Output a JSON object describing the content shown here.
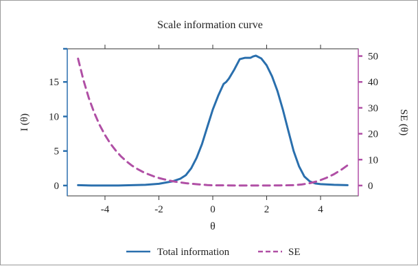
{
  "chart_data": {
    "type": "line",
    "title": "Scale information curve",
    "xlabel": "θ",
    "ylabel_left": "I (θ)",
    "ylabel_right": "SE (θ)",
    "xlim": [
      -5.4,
      5.4
    ],
    "ylim_left": [
      -1.5,
      19.8
    ],
    "ylim_right": [
      -4.0,
      52.8
    ],
    "x_ticks": [
      -4,
      -2,
      0,
      2,
      4
    ],
    "x_tick_labels": [
      "-4",
      "-2",
      "0",
      "2",
      "4"
    ],
    "y_left_ticks": [
      0,
      5,
      10,
      15
    ],
    "y_left_tick_labels": [
      "0",
      "5",
      "10",
      "15"
    ],
    "y_right_ticks": [
      0,
      10,
      20,
      30,
      40,
      50
    ],
    "y_right_tick_labels": [
      "0",
      "10",
      "20",
      "30",
      "40",
      "50"
    ],
    "grid": false,
    "legend_position": "bottom",
    "series": [
      {
        "name": "Total information",
        "axis": "left",
        "color": "#2a6fad",
        "style": "solid",
        "x": [
          -5,
          -4.5,
          -4,
          -3.5,
          -3,
          -2.5,
          -2,
          -1.5,
          -1.2,
          -1.0,
          -0.8,
          -0.6,
          -0.4,
          -0.2,
          0.0,
          0.2,
          0.4,
          0.5,
          0.6,
          0.8,
          1.0,
          1.2,
          1.4,
          1.5,
          1.6,
          1.8,
          2.0,
          2.2,
          2.4,
          2.6,
          2.8,
          3.0,
          3.2,
          3.4,
          3.6,
          3.8,
          4.0,
          4.5,
          5.0
        ],
        "y": [
          0.05,
          0.0,
          0.0,
          0.0,
          0.05,
          0.1,
          0.25,
          0.6,
          1.0,
          1.5,
          2.5,
          4.0,
          6.0,
          8.5,
          11.0,
          13.0,
          14.7,
          15.0,
          15.5,
          16.8,
          18.3,
          18.5,
          18.5,
          18.7,
          18.8,
          18.4,
          17.4,
          15.8,
          13.7,
          11.0,
          8.0,
          5.0,
          2.8,
          1.3,
          0.6,
          0.3,
          0.2,
          0.1,
          0.05
        ]
      },
      {
        "name": "SE",
        "axis": "right",
        "color": "#b04fa5",
        "style": "dashed",
        "x": [
          -5.0,
          -4.8,
          -4.6,
          -4.4,
          -4.2,
          -4.0,
          -3.8,
          -3.6,
          -3.4,
          -3.2,
          -3.0,
          -2.8,
          -2.6,
          -2.4,
          -2.2,
          -2.0,
          -1.8,
          -1.6,
          -1.4,
          -1.2,
          -1.0,
          -0.8,
          -0.6,
          -0.4,
          -0.2,
          0.0,
          0.5,
          1.0,
          1.5,
          2.0,
          2.5,
          3.0,
          3.3,
          3.6,
          3.9,
          4.2,
          4.5,
          4.8,
          5.0
        ],
        "y": [
          49,
          40.7,
          33.8,
          28.1,
          23.4,
          19.5,
          16.2,
          13.5,
          11.2,
          9.3,
          7.7,
          6.4,
          5.3,
          4.4,
          3.6,
          2.9,
          2.4,
          1.9,
          1.5,
          1.2,
          0.9,
          0.7,
          0.5,
          0.35,
          0.2,
          0.1,
          0.05,
          0.0,
          0.0,
          0.0,
          0.05,
          0.15,
          0.4,
          0.9,
          1.7,
          2.9,
          4.4,
          6.3,
          7.8
        ]
      }
    ]
  }
}
